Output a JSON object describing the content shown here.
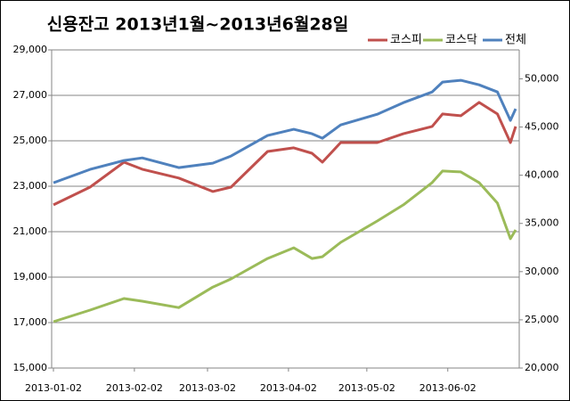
{
  "chart_data": {
    "type": "line",
    "title": "신용잔고 2013년1월~2013년6월28일",
    "x": [
      "2013-01-02",
      "2013-01-16",
      "2013-01-29",
      "2013-02-05",
      "2013-02-19",
      "2013-03-04",
      "2013-03-11",
      "2013-03-25",
      "2013-04-04",
      "2013-04-11",
      "2013-04-15",
      "2013-04-22",
      "2013-05-06",
      "2013-05-16",
      "2013-05-27",
      "2013-05-31",
      "2013-06-07",
      "2013-06-14",
      "2013-06-21",
      "2013-06-26",
      "2013-06-28"
    ],
    "series": [
      {
        "name": "코스피",
        "color": "#c0504d",
        "axis": "y",
        "values": [
          22180,
          22960,
          24060,
          23750,
          23360,
          22770,
          22960,
          24530,
          24690,
          24450,
          24060,
          24920,
          24920,
          25310,
          25630,
          26180,
          26100,
          26690,
          26180,
          24920,
          25630
        ]
      },
      {
        "name": "코스닥",
        "color": "#9bbb59",
        "axis": "y",
        "values": [
          17040,
          17550,
          18060,
          17940,
          17660,
          18560,
          18920,
          19820,
          20290,
          19820,
          19900,
          20530,
          21470,
          22180,
          23160,
          23670,
          23630,
          23160,
          22260,
          20690,
          21080
        ]
      },
      {
        "name": "전체",
        "color": "#4f81bd",
        "axis": "y2",
        "values": [
          39220,
          40600,
          41530,
          41800,
          40790,
          41250,
          41990,
          44120,
          44760,
          44300,
          43840,
          45220,
          46330,
          47530,
          48640,
          49660,
          49850,
          49380,
          48640,
          45690,
          46890
        ]
      }
    ],
    "xlim": [
      "2013-01-02",
      "2013-06-28"
    ],
    "xticks": [
      "2013-01-02",
      "2013-02-02",
      "2013-03-02",
      "2013-04-02",
      "2013-05-02",
      "2013-06-02"
    ],
    "ylim": [
      15000,
      29000
    ],
    "yticks": [
      {
        "value": 15000,
        "label": "15,000"
      },
      {
        "value": 17000,
        "label": "17,000"
      },
      {
        "value": 19000,
        "label": "19,000"
      },
      {
        "value": 21000,
        "label": "21,000"
      },
      {
        "value": 23000,
        "label": "23,000"
      },
      {
        "value": 25000,
        "label": "25,000"
      },
      {
        "value": 27000,
        "label": "27,000"
      },
      {
        "value": 29000,
        "label": "29,000"
      }
    ],
    "y2lim": [
      20000,
      53000
    ],
    "y2ticks": [
      {
        "value": 20000,
        "label": "20,000"
      },
      {
        "value": 25000,
        "label": "25,000"
      },
      {
        "value": 30000,
        "label": "30,000"
      },
      {
        "value": 35000,
        "label": "35,000"
      },
      {
        "value": 40000,
        "label": "40,000"
      },
      {
        "value": 45000,
        "label": "45,000"
      },
      {
        "value": 50000,
        "label": "50,000"
      }
    ],
    "grid": true,
    "legend": "top-right"
  }
}
